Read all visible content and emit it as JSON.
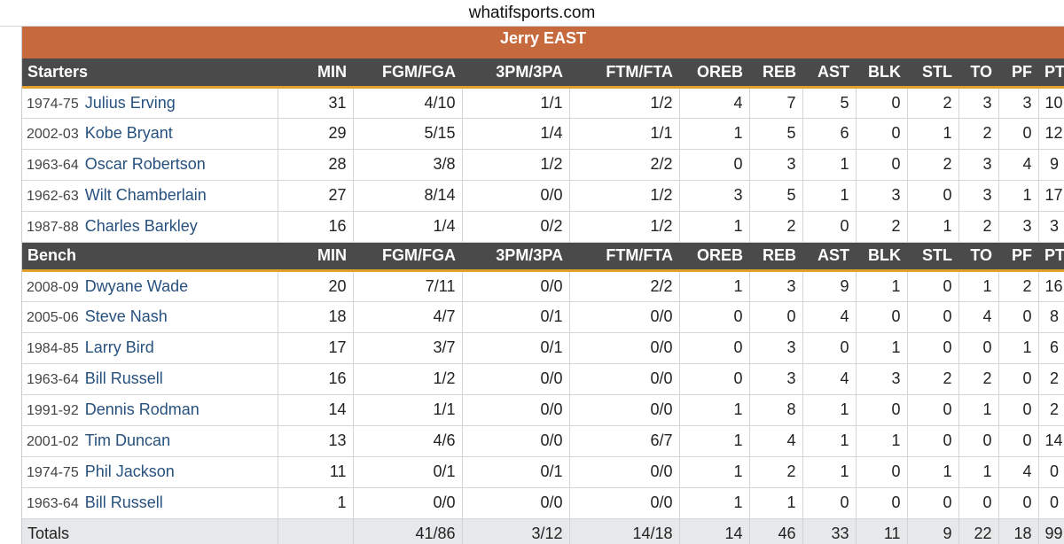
{
  "site": {
    "title": "whatifsports.com"
  },
  "team": {
    "name": "Jerry EAST"
  },
  "columns": [
    "MIN",
    "FGM/FGA",
    "3PM/3PA",
    "FTM/FTA",
    "OREB",
    "REB",
    "AST",
    "BLK",
    "STL",
    "TO",
    "PF",
    "PTS"
  ],
  "sections": [
    {
      "label": "Starters",
      "players": [
        {
          "season": "1974-75",
          "name": "Julius Erving",
          "stats": [
            "31",
            "4/10",
            "1/1",
            "1/2",
            "4",
            "7",
            "5",
            "0",
            "2",
            "3",
            "3",
            "10"
          ]
        },
        {
          "season": "2002-03",
          "name": "Kobe Bryant",
          "stats": [
            "29",
            "5/15",
            "1/4",
            "1/1",
            "1",
            "5",
            "6",
            "0",
            "1",
            "2",
            "0",
            "12"
          ]
        },
        {
          "season": "1963-64",
          "name": "Oscar Robertson",
          "stats": [
            "28",
            "3/8",
            "1/2",
            "2/2",
            "0",
            "3",
            "1",
            "0",
            "2",
            "3",
            "4",
            "9"
          ]
        },
        {
          "season": "1962-63",
          "name": "Wilt Chamberlain",
          "stats": [
            "27",
            "8/14",
            "0/0",
            "1/2",
            "3",
            "5",
            "1",
            "3",
            "0",
            "3",
            "1",
            "17"
          ]
        },
        {
          "season": "1987-88",
          "name": "Charles Barkley",
          "stats": [
            "16",
            "1/4",
            "0/2",
            "1/2",
            "1",
            "2",
            "0",
            "2",
            "1",
            "2",
            "3",
            "3"
          ]
        }
      ]
    },
    {
      "label": "Bench",
      "players": [
        {
          "season": "2008-09",
          "name": "Dwyane Wade",
          "stats": [
            "20",
            "7/11",
            "0/0",
            "2/2",
            "1",
            "3",
            "9",
            "1",
            "0",
            "1",
            "2",
            "16"
          ]
        },
        {
          "season": "2005-06",
          "name": "Steve Nash",
          "stats": [
            "18",
            "4/7",
            "0/1",
            "0/0",
            "0",
            "0",
            "4",
            "0",
            "0",
            "4",
            "0",
            "8"
          ]
        },
        {
          "season": "1984-85",
          "name": "Larry Bird",
          "stats": [
            "17",
            "3/7",
            "0/1",
            "0/0",
            "0",
            "3",
            "0",
            "1",
            "0",
            "0",
            "1",
            "6"
          ]
        },
        {
          "season": "1963-64",
          "name": "Bill Russell",
          "stats": [
            "16",
            "1/2",
            "0/0",
            "0/0",
            "0",
            "3",
            "4",
            "3",
            "2",
            "2",
            "0",
            "2"
          ]
        },
        {
          "season": "1991-92",
          "name": "Dennis Rodman",
          "stats": [
            "14",
            "1/1",
            "0/0",
            "0/0",
            "1",
            "8",
            "1",
            "0",
            "0",
            "1",
            "0",
            "2"
          ]
        },
        {
          "season": "2001-02",
          "name": "Tim Duncan",
          "stats": [
            "13",
            "4/6",
            "0/0",
            "6/7",
            "1",
            "4",
            "1",
            "1",
            "0",
            "0",
            "0",
            "14"
          ]
        },
        {
          "season": "1974-75",
          "name": "Phil Jackson",
          "stats": [
            "11",
            "0/1",
            "0/1",
            "0/0",
            "1",
            "2",
            "1",
            "0",
            "1",
            "1",
            "4",
            "0"
          ]
        },
        {
          "season": "1963-64",
          "name": "Bill Russell",
          "stats": [
            "1",
            "0/0",
            "0/0",
            "0/0",
            "1",
            "1",
            "0",
            "0",
            "0",
            "0",
            "0",
            "0"
          ]
        }
      ]
    }
  ],
  "totals": {
    "label": "Totals",
    "stats": [
      "",
      "41/86",
      "3/12",
      "14/18",
      "14",
      "46",
      "33",
      "11",
      "9",
      "22",
      "18",
      "99"
    ]
  },
  "colors": {
    "team_header": "#c6693d",
    "section_header": "#4a4a4a",
    "section_underline": "#e0a22a",
    "player_link": "#27517e",
    "totals_bg": "#e6e8ea"
  }
}
